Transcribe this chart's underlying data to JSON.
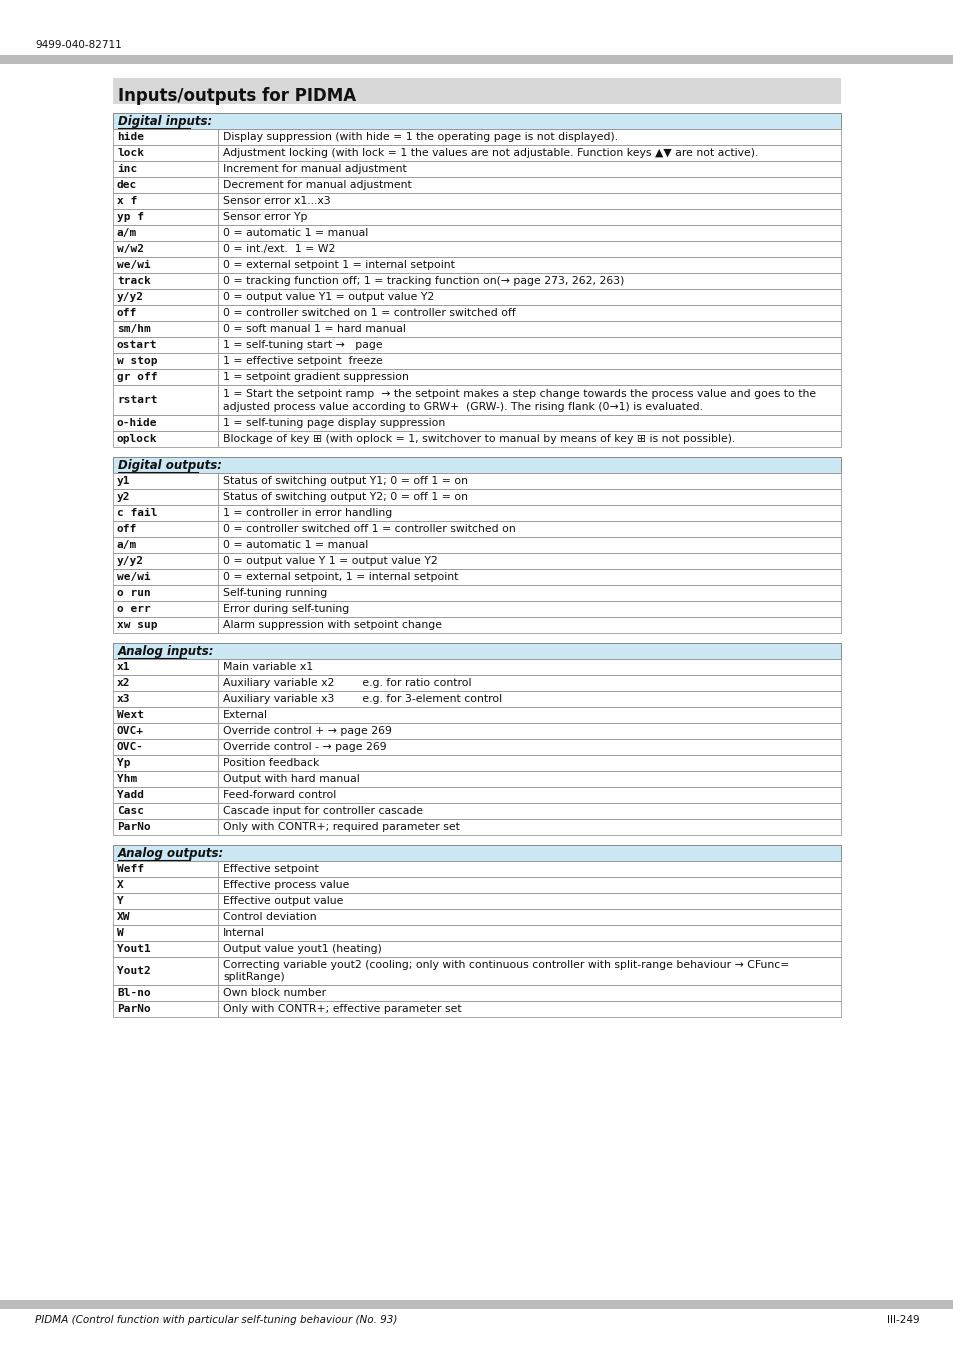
{
  "title": "Inputs/outputs for PIDMA",
  "header_top": "9499-040-82711",
  "footer_left": "PIDMA (Control function with particular self-tuning behaviour (No. 93)",
  "footer_right": "III-249",
  "section_header_bg": "#cce8f4",
  "border_color": "#888888",
  "title_bg": "#d8d8d8",
  "top_bar_bg": "#bbbbbb",
  "bottom_bar_bg": "#bbbbbb",
  "digital_inputs_header": "Digital inputs:",
  "digital_inputs": [
    [
      "hide",
      "Display suppression (with hide = 1 the operating page is not displayed)."
    ],
    [
      "lock",
      "Adjustment locking (with lock = 1 the values are not adjustable. Function keys ▲▼ are not active)."
    ],
    [
      "inc",
      "Increment for manual adjustment"
    ],
    [
      "dec",
      "Decrement for manual adjustment"
    ],
    [
      "x f",
      "Sensor error x1...x3"
    ],
    [
      "yp f",
      "Sensor error Yp"
    ],
    [
      "a/m",
      "0 = automatic 1 = manual"
    ],
    [
      "w/w2",
      "0 = int./ext.  1 = W2"
    ],
    [
      "we/wi",
      "0 = external setpoint 1 = internal setpoint"
    ],
    [
      "track",
      "0 = tracking function off; 1 = tracking function on(→ page 273, 262, 263)"
    ],
    [
      "y/y2",
      "0 = output value Y1 = output value Y2"
    ],
    [
      "off",
      "0 = controller switched on 1 = controller switched off"
    ],
    [
      "sm/hm",
      "0 = soft manual 1 = hard manual"
    ],
    [
      "ostart",
      "1 = self-tuning start →   page"
    ],
    [
      "w stop",
      "1 = effective setpoint  freeze"
    ],
    [
      "gr off",
      "1 = setpoint gradient suppression"
    ],
    [
      "rstart",
      "1 = Start the setpoint ramp  → the setpoint makes a step change towards the process value and goes to the\nadjusted process value according to GRW+  (GRW-). The rising flank (0→1) is evaluated."
    ],
    [
      "o-hide",
      "1 = self-tuning page display suppression"
    ],
    [
      "oplock",
      "Blockage of key ⊞ (with oplock = 1, switchover to manual by means of key ⊞ is not possible)."
    ]
  ],
  "digital_outputs_header": "Digital outputs:",
  "digital_outputs": [
    [
      "y1",
      "Status of switching output Y1; 0 = off 1 = on"
    ],
    [
      "y2",
      "Status of switching output Y2; 0 = off 1 = on"
    ],
    [
      "c fail",
      "1 = controller in error handling"
    ],
    [
      "off",
      "0 = controller switched off 1 = controller switched on"
    ],
    [
      "a/m",
      "0 = automatic 1 = manual"
    ],
    [
      "y/y2",
      "0 = output value Y 1 = output value Y2"
    ],
    [
      "we/wi",
      "0 = external setpoint, 1 = internal setpoint"
    ],
    [
      "o run",
      "Self-tuning running"
    ],
    [
      "o err",
      "Error during self-tuning"
    ],
    [
      "xw sup",
      "Alarm suppression with setpoint change"
    ]
  ],
  "analog_inputs_header": "Analog inputs:",
  "analog_inputs": [
    [
      "x1",
      "Main variable x1"
    ],
    [
      "x2",
      "Auxiliary variable x2        e.g. for ratio control"
    ],
    [
      "x3",
      "Auxiliary variable x3        e.g. for 3-element control"
    ],
    [
      "Wext",
      "External"
    ],
    [
      "OVC+",
      "Override control + → page 269"
    ],
    [
      "OVC-",
      "Override control - → page 269"
    ],
    [
      "Yp",
      "Position feedback"
    ],
    [
      "Yhm",
      "Output with hard manual"
    ],
    [
      "Yadd",
      "Feed-forward control"
    ],
    [
      "Casc",
      "Cascade input for controller cascade"
    ],
    [
      "ParNo",
      "Only with CONTR+; required parameter set"
    ]
  ],
  "analog_outputs_header": "Analog outputs:",
  "analog_outputs": [
    [
      "Weff",
      "Effective setpoint"
    ],
    [
      "X",
      "Effective process value"
    ],
    [
      "Y",
      "Effective output value"
    ],
    [
      "XW",
      "Control deviation"
    ],
    [
      "W",
      "Internal"
    ],
    [
      "Yout1",
      "Output value yout1 (heating)"
    ],
    [
      "Yout2",
      "Correcting variable yout2 (cooling; only with continuous controller with split-range behaviour → CFunc=\nsplitRange)"
    ],
    [
      "Bl-no",
      "Own block number"
    ],
    [
      "ParNo",
      "Only with CONTR+; effective parameter set"
    ]
  ]
}
